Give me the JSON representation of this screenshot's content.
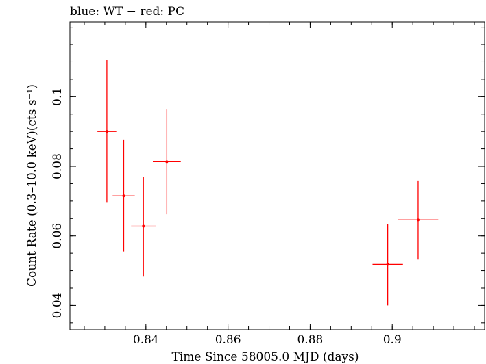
{
  "chart_data": {
    "type": "scatter",
    "title": "blue: WT − red: PC",
    "xlabel": "Time Since 58005.0 MJD (days)",
    "ylabel": "Count Rate (0.3–10.0 keV)(cts s⁻¹)",
    "xlim": [
      0.8215,
      0.9225
    ],
    "ylim": [
      0.033,
      0.1215
    ],
    "xticks": [
      0.84,
      0.86,
      0.88,
      0.9
    ],
    "xtick_labels": [
      "0.84",
      "0.86",
      "0.88",
      "0.9"
    ],
    "yticks": [
      0.04,
      0.06,
      0.08,
      0.1
    ],
    "ytick_labels": [
      "0.04",
      "0.06",
      "0.08",
      "0.1"
    ],
    "grid": false,
    "series": [
      {
        "name": "PC",
        "color": "#ff0000",
        "points": [
          {
            "x": 0.8305,
            "xerr": 0.0023,
            "y": 0.09,
            "yerr_lo": 0.0203,
            "yerr_hi": 0.0205
          },
          {
            "x": 0.8346,
            "xerr": 0.0027,
            "y": 0.0715,
            "yerr_lo": 0.016,
            "yerr_hi": 0.0162
          },
          {
            "x": 0.8394,
            "xerr": 0.003,
            "y": 0.0628,
            "yerr_lo": 0.0145,
            "yerr_hi": 0.0141
          },
          {
            "x": 0.8451,
            "xerr": 0.0034,
            "y": 0.0813,
            "yerr_lo": 0.0151,
            "yerr_hi": 0.015
          },
          {
            "x": 0.8989,
            "xerr": 0.0037,
            "y": 0.0518,
            "yerr_lo": 0.0118,
            "yerr_hi": 0.0115
          },
          {
            "x": 0.9063,
            "xerr": 0.0049,
            "y": 0.0646,
            "yerr_lo": 0.0114,
            "yerr_hi": 0.0113
          }
        ]
      }
    ]
  }
}
